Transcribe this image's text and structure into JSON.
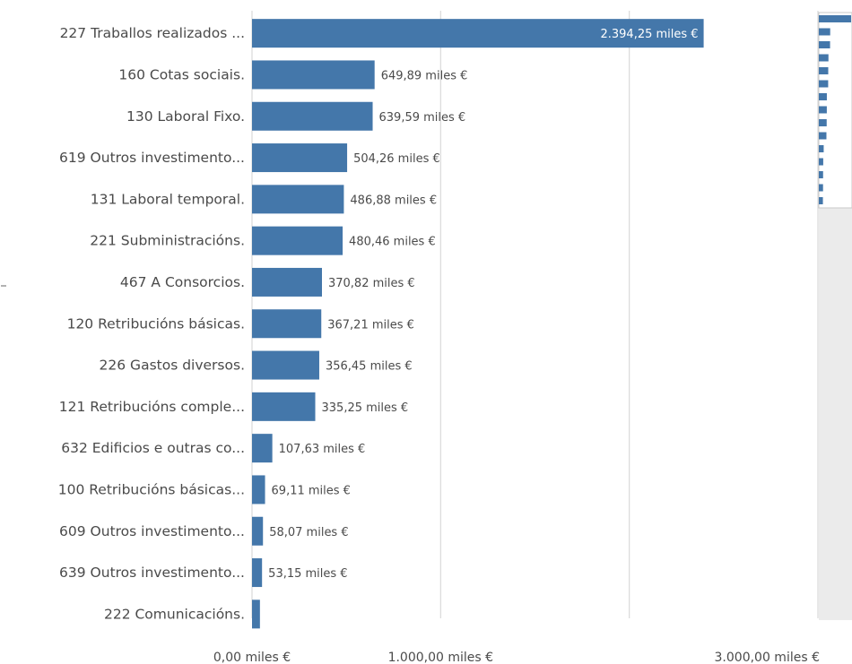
{
  "chart_data": {
    "type": "bar",
    "orientation": "horizontal",
    "categories": [
      "227 Traballos realizados ...",
      "160 Cotas sociais.",
      "130 Laboral Fixo.",
      "619 Outros investimento...",
      "131 Laboral temporal.",
      "221 Subministracións.",
      "467 A Consorcios.",
      "120 Retribucións básicas.",
      "226 Gastos diversos.",
      "121 Retribucións comple...",
      "632 Edificios e outras co...",
      "100 Retribucións básicas...",
      "609 Outros investimento...",
      "639 Outros investimento...",
      "222 Comunicacións."
    ],
    "values": [
      2394.25,
      649.89,
      639.59,
      504.26,
      486.88,
      480.46,
      370.82,
      367.21,
      356.45,
      335.25,
      107.63,
      69.11,
      58.07,
      53.15,
      42
    ],
    "value_labels": [
      "2.394,25 miles €",
      "649,89 miles €",
      "639,59 miles €",
      "504,26 miles €",
      "486,88 miles €",
      "480,46 miles €",
      "370,82 miles €",
      "367,21 miles €",
      "356,45 miles €",
      "335,25 miles €",
      "107,63 miles €",
      "69,11 miles €",
      "58,07 miles €",
      "53,15 miles €",
      ""
    ],
    "x_ticks": [
      {
        "value": 0,
        "label": "0,00 miles €"
      },
      {
        "value": 1000,
        "label": "1.000,00 miles €"
      },
      {
        "value": 2000,
        "label": ""
      },
      {
        "value": 3000,
        "label": "3.000,00 miles €"
      }
    ],
    "xlim": [
      0,
      3000
    ],
    "grid": true,
    "bar_color": "#4477aa",
    "title": "",
    "xlabel": "",
    "ylabel": ""
  },
  "minimap": {
    "bar_values": [
      2394.25,
      649.89,
      639.59,
      504.26,
      486.88,
      480.46,
      370.82,
      367.21,
      356.45,
      335.25,
      107.63,
      69.11,
      58.07,
      53.15,
      42
    ],
    "bar_color": "#4477aa",
    "panel_color": "#ebebeb"
  }
}
